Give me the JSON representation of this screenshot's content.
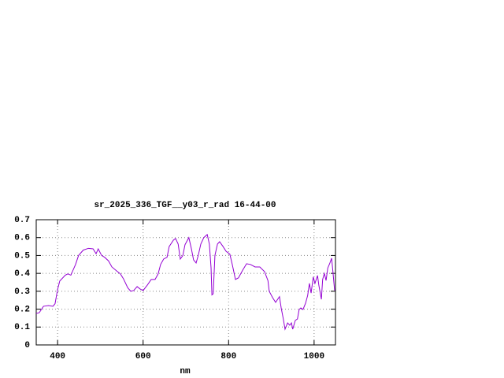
{
  "chart_data": {
    "type": "line",
    "title": "sr_2025_336_TGF__y03_r_rad 16-44-00",
    "x_label": "nm",
    "xlim": [
      350,
      1050
    ],
    "xticks": [
      400,
      600,
      800,
      1000
    ],
    "ylim": [
      0,
      0.7
    ],
    "yticks": [
      0,
      0.1,
      0.2,
      0.3,
      0.4,
      0.5,
      0.6,
      0.7
    ],
    "grid": true,
    "series": [
      {
        "color": "#9400d3",
        "x": [
          350,
          357,
          367,
          379,
          389,
          394,
          400,
          405,
          418,
          424,
          431,
          442,
          449,
          460,
          472,
          483,
          490,
          495,
          503,
          510,
          519,
          527,
          538,
          547,
          554,
          564,
          571,
          578,
          586,
          593,
          600,
          610,
          619,
          628,
          635,
          641,
          648,
          656,
          661,
          671,
          676,
          682,
          687,
          693,
          698,
          707,
          713,
          718,
          724,
          729,
          735,
          742,
          750,
          755,
          759,
          761,
          764,
          768,
          774,
          779,
          787,
          794,
          803,
          809,
          816,
          823,
          833,
          842,
          851,
          862,
          873,
          884,
          892,
          895,
          903,
          910,
          915,
          919,
          923,
          928,
          932,
          938,
          943,
          947,
          950,
          956,
          961,
          965,
          969,
          974,
          980,
          985,
          989,
          993,
          998,
          1002,
          1008,
          1011,
          1017,
          1020,
          1024,
          1028,
          1032,
          1037,
          1041,
          1044,
          1048
        ],
        "values": [
          0.176,
          0.18,
          0.216,
          0.22,
          0.216,
          0.23,
          0.31,
          0.357,
          0.39,
          0.397,
          0.39,
          0.45,
          0.5,
          0.53,
          0.54,
          0.537,
          0.51,
          0.537,
          0.5,
          0.49,
          0.47,
          0.436,
          0.414,
          0.397,
          0.37,
          0.32,
          0.3,
          0.304,
          0.326,
          0.313,
          0.304,
          0.335,
          0.366,
          0.366,
          0.396,
          0.45,
          0.48,
          0.49,
          0.55,
          0.586,
          0.595,
          0.564,
          0.48,
          0.5,
          0.56,
          0.6,
          0.537,
          0.476,
          0.458,
          0.5,
          0.564,
          0.6,
          0.617,
          0.564,
          0.43,
          0.28,
          0.286,
          0.5,
          0.564,
          0.577,
          0.55,
          0.524,
          0.507,
          0.445,
          0.366,
          0.375,
          0.418,
          0.454,
          0.45,
          0.436,
          0.436,
          0.41,
          0.36,
          0.3,
          0.264,
          0.238,
          0.256,
          0.27,
          0.207,
          0.145,
          0.088,
          0.123,
          0.11,
          0.123,
          0.088,
          0.137,
          0.145,
          0.198,
          0.207,
          0.198,
          0.233,
          0.277,
          0.344,
          0.29,
          0.38,
          0.344,
          0.388,
          0.335,
          0.255,
          0.366,
          0.4,
          0.36,
          0.43,
          0.458,
          0.485,
          0.41,
          0.304
        ]
      }
    ]
  }
}
